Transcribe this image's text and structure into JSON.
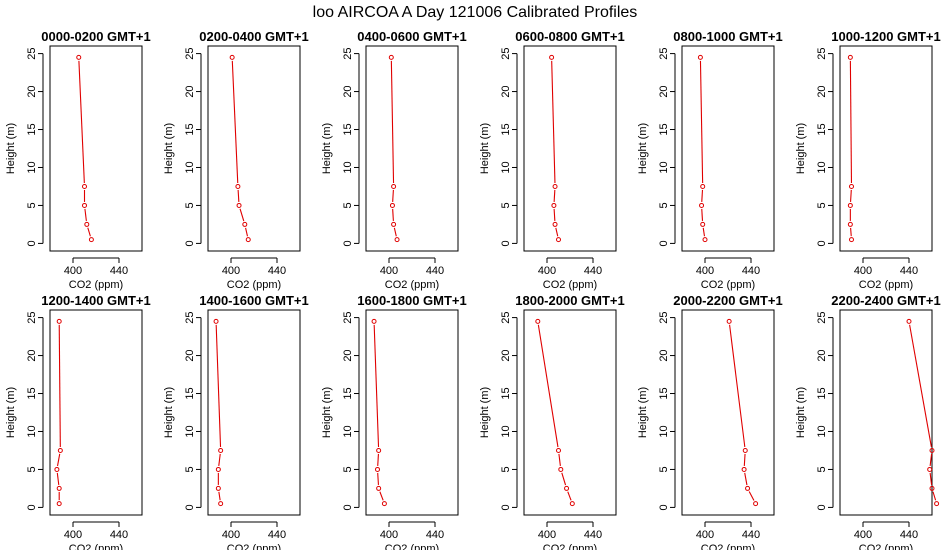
{
  "figure_title": "loo AIRCOA A  Day 121006  Calibrated Profiles",
  "colors": {
    "series": "#e00000",
    "axes": "#000000",
    "background": "#ffffff"
  },
  "chart_data": [
    {
      "type": "line",
      "title": "0000-0200 GMT+1",
      "xlabel": "CO2 (ppm)",
      "ylabel": "Height (m)",
      "xlim": [
        380,
        460
      ],
      "ylim": [
        -1,
        26
      ],
      "xticks": [
        400,
        440
      ],
      "yticks": [
        0,
        5,
        10,
        15,
        20,
        25
      ],
      "x": [
        416,
        412,
        410,
        410,
        405
      ],
      "y": [
        0.5,
        2.5,
        5,
        7.5,
        24.5
      ]
    },
    {
      "type": "line",
      "title": "0200-0400 GMT+1",
      "xlabel": "CO2 (ppm)",
      "ylabel": "Height (m)",
      "xlim": [
        380,
        460
      ],
      "ylim": [
        -1,
        26
      ],
      "xticks": [
        400,
        440
      ],
      "yticks": [
        0,
        5,
        10,
        15,
        20,
        25
      ],
      "x": [
        415,
        412,
        407,
        406,
        401
      ],
      "y": [
        0.5,
        2.5,
        5,
        7.5,
        24.5
      ]
    },
    {
      "type": "line",
      "title": "0400-0600 GMT+1",
      "xlabel": "CO2 (ppm)",
      "ylabel": "Height (m)",
      "xlim": [
        380,
        460
      ],
      "ylim": [
        -1,
        26
      ],
      "xticks": [
        400,
        440
      ],
      "yticks": [
        0,
        5,
        10,
        15,
        20,
        25
      ],
      "x": [
        407,
        404,
        403,
        404,
        402
      ],
      "y": [
        0.5,
        2.5,
        5,
        7.5,
        24.5
      ]
    },
    {
      "type": "line",
      "title": "0600-0800 GMT+1",
      "xlabel": "CO2 (ppm)",
      "ylabel": "Height (m)",
      "xlim": [
        380,
        460
      ],
      "ylim": [
        -1,
        26
      ],
      "xticks": [
        400,
        440
      ],
      "yticks": [
        0,
        5,
        10,
        15,
        20,
        25
      ],
      "x": [
        410,
        407,
        406,
        407,
        404
      ],
      "y": [
        0.5,
        2.5,
        5,
        7.5,
        24.5
      ]
    },
    {
      "type": "line",
      "title": "0800-1000 GMT+1",
      "xlabel": "CO2 (ppm)",
      "ylabel": "Height (m)",
      "xlim": [
        380,
        460
      ],
      "ylim": [
        -1,
        26
      ],
      "xticks": [
        400,
        440
      ],
      "yticks": [
        0,
        5,
        10,
        15,
        20,
        25
      ],
      "x": [
        400,
        398,
        397,
        398,
        396
      ],
      "y": [
        0.5,
        2.5,
        5,
        7.5,
        24.5
      ]
    },
    {
      "type": "line",
      "title": "1000-1200 GMT+1",
      "xlabel": "CO2 (ppm)",
      "ylabel": "Height (m)",
      "xlim": [
        380,
        460
      ],
      "ylim": [
        -1,
        26
      ],
      "xticks": [
        400,
        440
      ],
      "yticks": [
        0,
        5,
        10,
        15,
        20,
        25
      ],
      "x": [
        390,
        389,
        389,
        390,
        389
      ],
      "y": [
        0.5,
        2.5,
        5,
        7.5,
        24.5
      ]
    },
    {
      "type": "line",
      "title": "1200-1400 GMT+1",
      "xlabel": "CO2 (ppm)",
      "ylabel": "Height (m)",
      "xlim": [
        380,
        460
      ],
      "ylim": [
        -1,
        26
      ],
      "xticks": [
        400,
        440
      ],
      "yticks": [
        0,
        5,
        10,
        15,
        20,
        25
      ],
      "x": [
        388,
        388,
        386,
        389,
        388
      ],
      "y": [
        0.5,
        2.5,
        5,
        7.5,
        24.5
      ]
    },
    {
      "type": "line",
      "title": "1400-1600 GMT+1",
      "xlabel": "CO2 (ppm)",
      "ylabel": "Height (m)",
      "xlim": [
        380,
        460
      ],
      "ylim": [
        -1,
        26
      ],
      "xticks": [
        400,
        440
      ],
      "yticks": [
        0,
        5,
        10,
        15,
        20,
        25
      ],
      "x": [
        391,
        389,
        389,
        391,
        387
      ],
      "y": [
        0.5,
        2.5,
        5,
        7.5,
        24.5
      ]
    },
    {
      "type": "line",
      "title": "1600-1800 GMT+1",
      "xlabel": "CO2 (ppm)",
      "ylabel": "Height (m)",
      "xlim": [
        380,
        460
      ],
      "ylim": [
        -1,
        26
      ],
      "xticks": [
        400,
        440
      ],
      "yticks": [
        0,
        5,
        10,
        15,
        20,
        25
      ],
      "x": [
        396,
        391,
        390,
        391,
        387
      ],
      "y": [
        0.5,
        2.5,
        5,
        7.5,
        24.5
      ]
    },
    {
      "type": "line",
      "title": "1800-2000 GMT+1",
      "xlabel": "CO2 (ppm)",
      "ylabel": "Height (m)",
      "xlim": [
        380,
        460
      ],
      "ylim": [
        -1,
        26
      ],
      "xticks": [
        400,
        440
      ],
      "yticks": [
        0,
        5,
        10,
        15,
        20,
        25
      ],
      "x": [
        422,
        417,
        412,
        410,
        392
      ],
      "y": [
        0.5,
        2.5,
        5,
        7.5,
        24.5
      ]
    },
    {
      "type": "line",
      "title": "2000-2200 GMT+1",
      "xlabel": "CO2 (ppm)",
      "ylabel": "Height (m)",
      "xlim": [
        380,
        460
      ],
      "ylim": [
        -1,
        26
      ],
      "xticks": [
        400,
        440
      ],
      "yticks": [
        0,
        5,
        10,
        15,
        20,
        25
      ],
      "x": [
        444,
        437,
        434,
        435,
        421
      ],
      "y": [
        0.5,
        2.5,
        5,
        7.5,
        24.5
      ]
    },
    {
      "type": "line",
      "title": "2200-2400 GMT+1",
      "xlabel": "CO2 (ppm)",
      "ylabel": "Height (m)",
      "xlim": [
        380,
        460
      ],
      "ylim": [
        -1,
        26
      ],
      "xticks": [
        400,
        440
      ],
      "yticks": [
        0,
        5,
        10,
        15,
        20,
        25
      ],
      "x": [
        464,
        460,
        458,
        460,
        440
      ],
      "y": [
        0.5,
        2.5,
        5,
        7.5,
        24.5
      ]
    }
  ]
}
